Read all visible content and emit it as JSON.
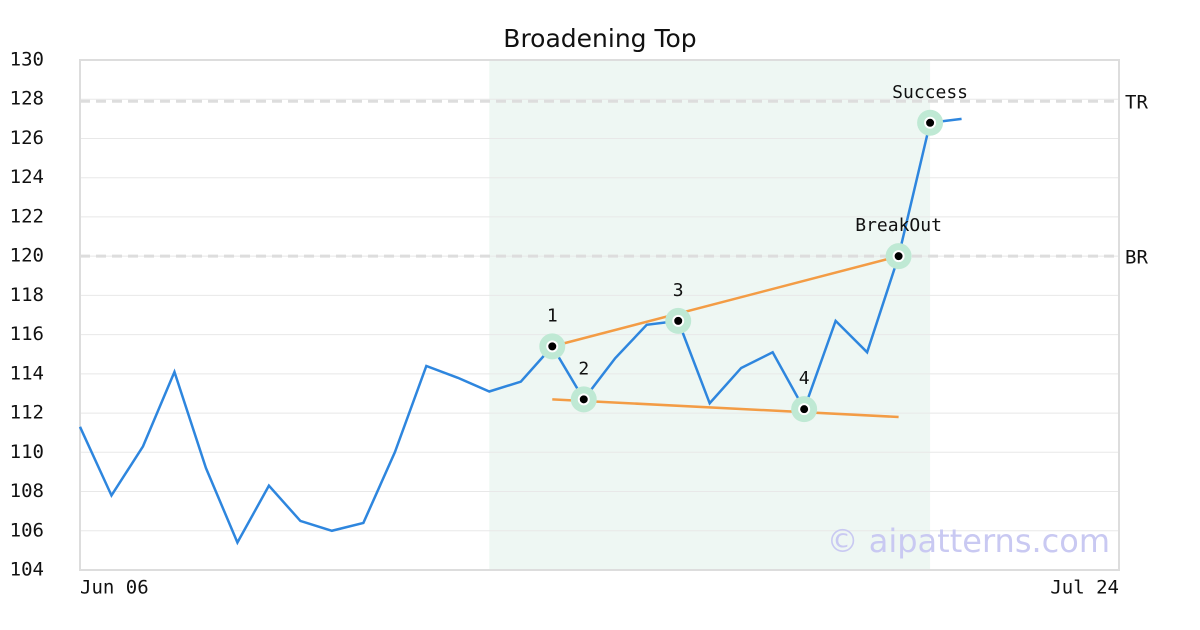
{
  "chart_data": {
    "type": "line",
    "title": "Broadening Top",
    "x": [
      0,
      1,
      2,
      3,
      4,
      5,
      6,
      7,
      8,
      9,
      10,
      11,
      12,
      13,
      14,
      15,
      16,
      17,
      18,
      19,
      20,
      21,
      22,
      23,
      24,
      25,
      26,
      27,
      28
    ],
    "values": [
      111.3,
      107.8,
      110.3,
      114.1,
      109.2,
      105.4,
      108.3,
      106.5,
      106.0,
      106.4,
      110.0,
      114.4,
      113.8,
      113.1,
      113.6,
      115.4,
      112.7,
      114.8,
      116.5,
      116.7,
      112.5,
      114.3,
      115.1,
      112.2,
      116.7,
      115.1,
      120.0,
      126.8,
      127.0
    ],
    "color": "#2e86de",
    "xlim": [
      0,
      33
    ],
    "xticks": [
      {
        "value": 0,
        "label": "Jun 06"
      },
      {
        "value": 33,
        "label": "Jul 24"
      }
    ],
    "ylim": [
      104,
      130
    ],
    "yticks": [
      104,
      106,
      108,
      110,
      112,
      114,
      116,
      118,
      120,
      122,
      124,
      126,
      128,
      130
    ],
    "grid": true,
    "shaded_region": {
      "from": 13,
      "to": 27,
      "color": "#eef7f3"
    },
    "reference_lines": [
      {
        "value": 127.9,
        "label": "TR"
      },
      {
        "value": 120,
        "label": "BR"
      }
    ],
    "trendlines": [
      {
        "x": [
          15,
          26
        ],
        "values": [
          115.4,
          120.0
        ],
        "color": "#f39c45"
      },
      {
        "x": [
          15,
          26
        ],
        "values": [
          112.7,
          111.8
        ],
        "color": "#f39c45"
      }
    ],
    "annotations": [
      {
        "index": 15,
        "label": "1"
      },
      {
        "index": 16,
        "label": "2"
      },
      {
        "index": 19,
        "label": "3"
      },
      {
        "index": 23,
        "label": "4"
      },
      {
        "index": 26,
        "label": "BreakOut"
      },
      {
        "index": 27,
        "label": "Success"
      }
    ],
    "watermark": "© aipatterns.com"
  }
}
